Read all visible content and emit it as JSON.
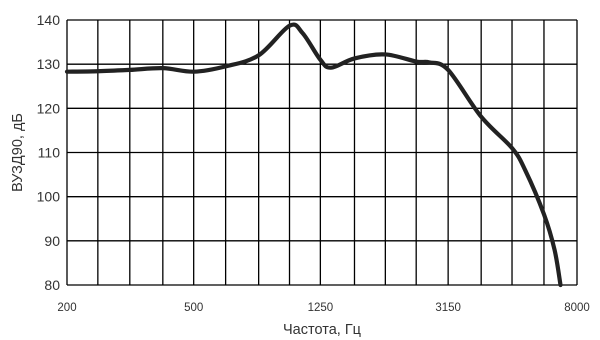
{
  "chart_data": {
    "type": "line",
    "title": "",
    "xlabel": "Частота, Гц",
    "ylabel": "ВУЗД90, дБ",
    "x_scale": "log",
    "xlim": [
      200,
      8000
    ],
    "ylim": [
      80,
      140
    ],
    "x_ticks": [
      200,
      500,
      1250,
      3150,
      8000
    ],
    "x_tick_labels": [
      "200",
      "500",
      "1250",
      "3150",
      "8000"
    ],
    "y_ticks": [
      80,
      90,
      100,
      110,
      120,
      130,
      140
    ],
    "y_tick_labels": [
      "80",
      "90",
      "100",
      "110",
      "120",
      "130",
      "140"
    ],
    "grid": true,
    "x_gridlines": [
      200,
      250,
      315,
      400,
      500,
      630,
      800,
      1000,
      1250,
      1600,
      2000,
      2500,
      3150,
      4000,
      5000,
      6300,
      8000
    ],
    "y_gridlines": [
      80,
      90,
      100,
      110,
      120,
      130,
      140
    ],
    "series": [
      {
        "color": "#222222",
        "x": [
          200,
          250,
          315,
          400,
          500,
          630,
          800,
          1000,
          1100,
          1250,
          1350,
          1600,
          2000,
          2500,
          2750,
          3150,
          4000,
          5000,
          5500,
          6300,
          6800,
          7100
        ],
        "y": [
          128.3,
          128.4,
          128.7,
          129.1,
          128.3,
          129.5,
          132.0,
          138.7,
          137.0,
          131.0,
          129.2,
          131.3,
          132.2,
          130.6,
          130.4,
          128.7,
          118.1,
          111.0,
          106.0,
          96.0,
          88.0,
          80.0
        ]
      }
    ]
  }
}
